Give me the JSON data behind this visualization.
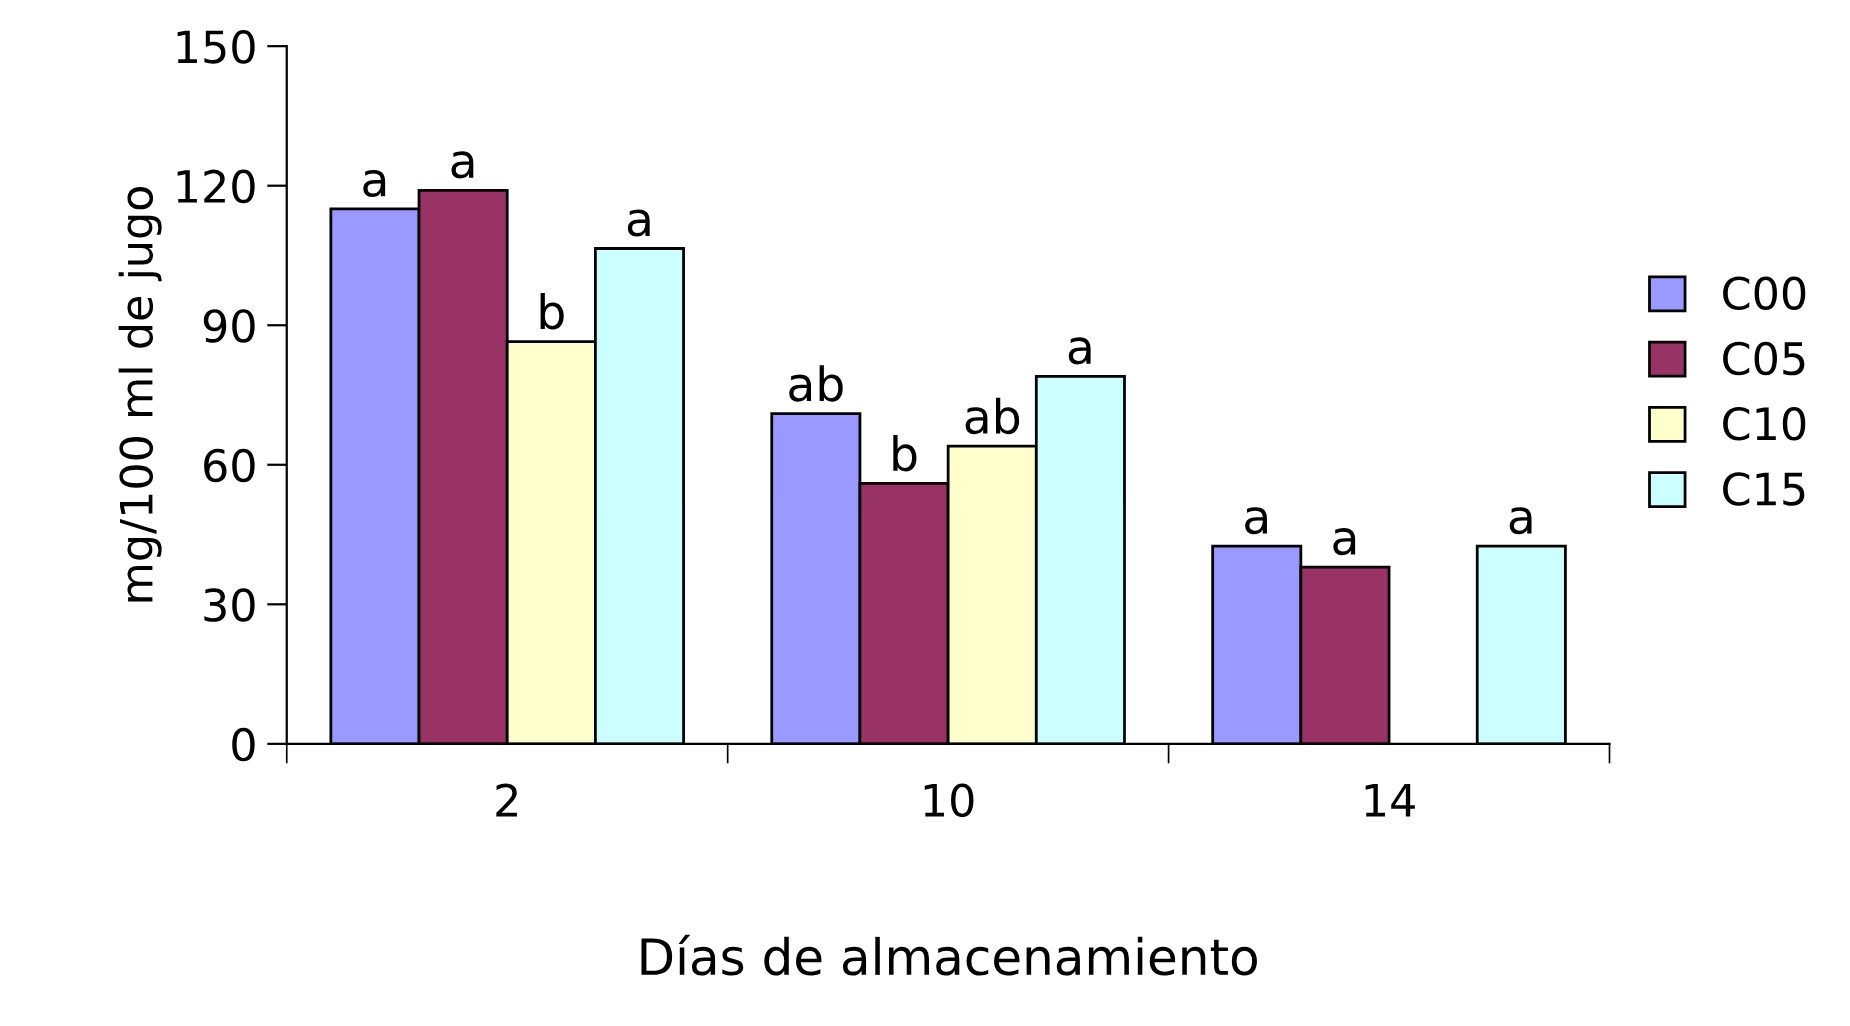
{
  "chart_data": {
    "type": "bar",
    "xlabel": "Días de almacenamiento",
    "ylabel": "mg/100 ml de jugo",
    "categories": [
      "2",
      "10",
      "14"
    ],
    "series": [
      {
        "name": "C00",
        "color": "#9999ff",
        "values": [
          115,
          71,
          42.5
        ],
        "value_labels": [
          "a",
          "ab",
          "a"
        ]
      },
      {
        "name": "C05",
        "color": "#993366",
        "values": [
          119,
          56,
          38
        ],
        "value_labels": [
          "a",
          "b",
          "a"
        ]
      },
      {
        "name": "C10",
        "color": "#ffffcc",
        "values": [
          86.5,
          64,
          null
        ],
        "value_labels": [
          "b",
          "ab",
          null
        ]
      },
      {
        "name": "C15",
        "color": "#ccffff",
        "values": [
          106.5,
          79,
          42.5
        ],
        "value_labels": [
          "a",
          "a",
          "a"
        ]
      }
    ],
    "ylim": [
      0,
      150
    ],
    "yticks": [
      0,
      30,
      60,
      90,
      120,
      150
    ],
    "grid": false,
    "legend": "right"
  }
}
